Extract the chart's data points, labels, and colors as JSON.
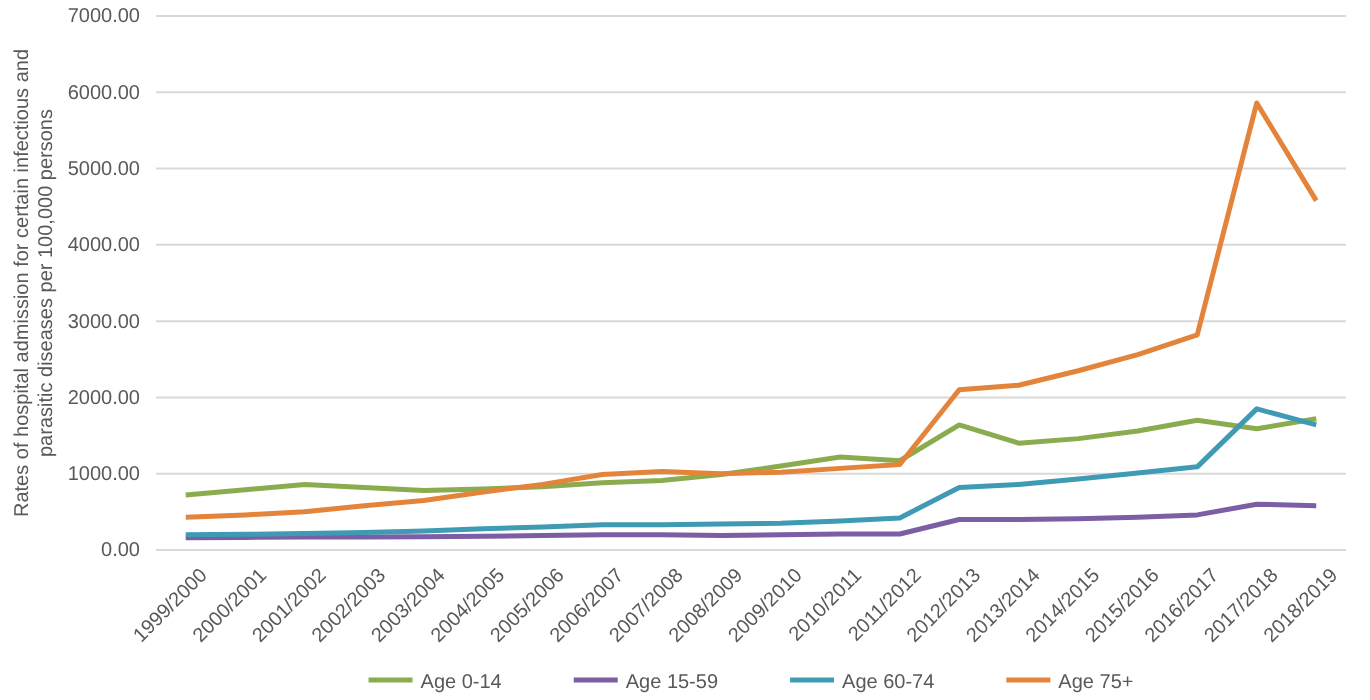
{
  "chart_data": {
    "type": "line",
    "ylabel": "Rates of hospital admission for certain infectious and parasitic diseases per 100,000 persons",
    "categories": [
      "1999/2000",
      "2000/2001",
      "2001/2002",
      "2002/2003",
      "2003/2004",
      "2004/2005",
      "2005/2006",
      "2006/2007",
      "2007/2008",
      "2008/2009",
      "2009/2010",
      "2010/2011",
      "2011/2012",
      "2012/2013",
      "2013/2014",
      "2014/2015",
      "2015/2016",
      "2016/2017",
      "2017/2018",
      "2018/2019"
    ],
    "series": [
      {
        "name": "Age 0-14",
        "color": "#8aac4e",
        "values": [
          720,
          790,
          860,
          820,
          780,
          800,
          830,
          880,
          910,
          990,
          1100,
          1220,
          1170,
          1640,
          1400,
          1460,
          1560,
          1700,
          1590,
          1720
        ]
      },
      {
        "name": "Age 15-59",
        "color": "#7b5ea3",
        "values": [
          160,
          165,
          170,
          170,
          175,
          180,
          190,
          200,
          200,
          190,
          200,
          210,
          210,
          400,
          400,
          410,
          430,
          460,
          600,
          580
        ]
      },
      {
        "name": "Age 60-74",
        "color": "#3f9bb3",
        "values": [
          200,
          205,
          215,
          230,
          250,
          280,
          300,
          330,
          330,
          340,
          350,
          380,
          420,
          820,
          860,
          930,
          1010,
          1090,
          1850,
          1640
        ]
      },
      {
        "name": "Age 75+",
        "color": "#e3843a",
        "values": [
          430,
          460,
          500,
          580,
          650,
          760,
          860,
          990,
          1030,
          1000,
          1020,
          1070,
          1120,
          2100,
          2160,
          2350,
          2560,
          2820,
          5860,
          4580
        ]
      }
    ],
    "ylim": [
      0,
      7000
    ],
    "yticks": [
      {
        "value": 0,
        "label": "0.00"
      },
      {
        "value": 1000,
        "label": "1000.00"
      },
      {
        "value": 2000,
        "label": "2000.00"
      },
      {
        "value": 3000,
        "label": "3000.00"
      },
      {
        "value": 4000,
        "label": "4000.00"
      },
      {
        "value": 5000,
        "label": "5000.00"
      },
      {
        "value": 6000,
        "label": "6000.00"
      },
      {
        "value": 7000,
        "label": "7000.00"
      }
    ],
    "grid": "y",
    "legend": "bottom",
    "marker": "none",
    "line_style": "solid"
  }
}
